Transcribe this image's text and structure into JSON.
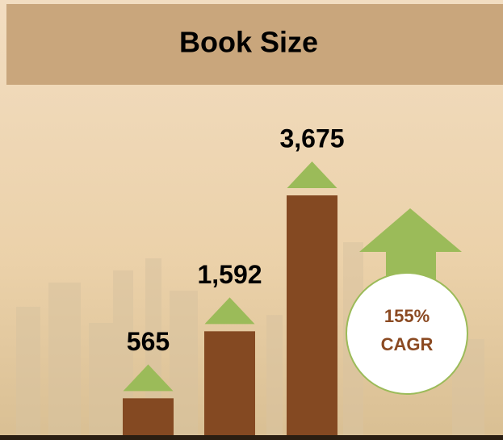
{
  "chart_data": {
    "type": "bar",
    "title": "Book Size",
    "categories": [
      null,
      null,
      null
    ],
    "values": [
      565,
      1592,
      3675
    ],
    "value_labels": [
      "565",
      "1,592",
      "3,675"
    ],
    "color": "#844922",
    "annotations": [
      "155%",
      "CAGR"
    ]
  }
}
